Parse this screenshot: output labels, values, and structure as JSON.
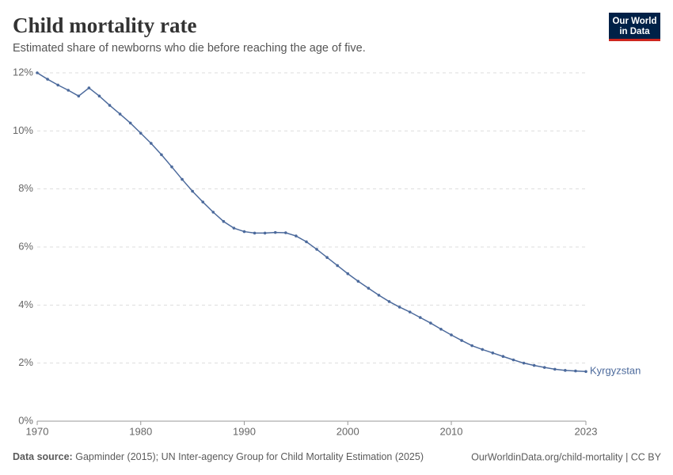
{
  "chart_data": {
    "type": "line",
    "title": "Child mortality rate",
    "subtitle": "Estimated share of newborns who die before reaching the age of five.",
    "logo": [
      "Our World",
      "in Data"
    ],
    "source_label": "Data source:",
    "source": "Gapminder (2015); UN Inter-agency Group for Child Mortality Estimation (2025)",
    "credit": "OurWorldinData.org/child-mortality | CC BY",
    "x": [
      1970,
      1971,
      1972,
      1973,
      1974,
      1975,
      1976,
      1977,
      1978,
      1979,
      1980,
      1981,
      1982,
      1983,
      1984,
      1985,
      1986,
      1987,
      1988,
      1989,
      1990,
      1991,
      1992,
      1993,
      1994,
      1995,
      1996,
      1997,
      1998,
      1999,
      2000,
      2001,
      2002,
      2003,
      2004,
      2005,
      2006,
      2007,
      2008,
      2009,
      2010,
      2011,
      2012,
      2013,
      2014,
      2015,
      2016,
      2017,
      2018,
      2019,
      2020,
      2021,
      2022,
      2023
    ],
    "series": [
      {
        "name": "Kyrgyzstan",
        "color": "#4c6a9c",
        "values": [
          12.0,
          11.78,
          11.58,
          11.4,
          11.2,
          11.48,
          11.2,
          10.88,
          10.58,
          10.27,
          9.92,
          9.57,
          9.18,
          8.76,
          8.33,
          7.92,
          7.55,
          7.2,
          6.88,
          6.65,
          6.53,
          6.48,
          6.48,
          6.5,
          6.49,
          6.38,
          6.18,
          5.92,
          5.64,
          5.36,
          5.08,
          4.82,
          4.58,
          4.34,
          4.12,
          3.93,
          3.76,
          3.57,
          3.38,
          3.17,
          2.97,
          2.78,
          2.6,
          2.47,
          2.35,
          2.23,
          2.11,
          2.0,
          1.92,
          1.85,
          1.79,
          1.75,
          1.73,
          1.71
        ]
      }
    ],
    "xlim": [
      1970,
      2023
    ],
    "xticks": [
      1970,
      1980,
      1990,
      2000,
      2010,
      2023
    ],
    "ylim": [
      0,
      12
    ],
    "yticks": [
      {
        "value": 0,
        "label": "0%"
      },
      {
        "value": 2,
        "label": "2%"
      },
      {
        "value": 4,
        "label": "4%"
      },
      {
        "value": 6,
        "label": "6%"
      },
      {
        "value": 8,
        "label": "8%"
      },
      {
        "value": 10,
        "label": "10%"
      },
      {
        "value": 12,
        "label": "12%"
      }
    ],
    "grid": true
  }
}
